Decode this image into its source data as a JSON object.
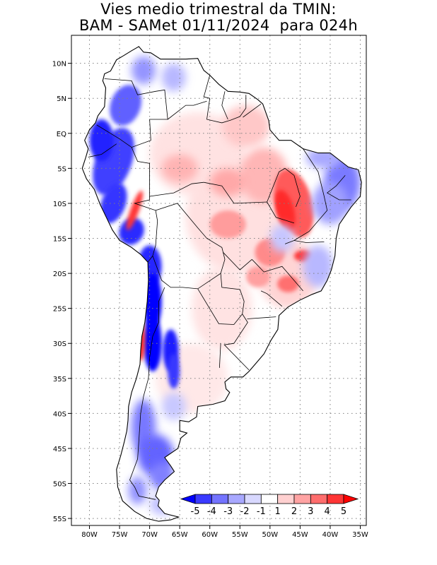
{
  "title": {
    "line1": "Vies medio trimestral da TMIN:",
    "line2": "BAM - SAMet 01/11/2024  para 024h"
  },
  "map": {
    "lon_range": [
      -83,
      -34
    ],
    "lat_range": [
      -56,
      14
    ],
    "x_ticks": [
      {
        "lon": -80,
        "label": "80W"
      },
      {
        "lon": -75,
        "label": "75W"
      },
      {
        "lon": -70,
        "label": "70W"
      },
      {
        "lon": -65,
        "label": "65W"
      },
      {
        "lon": -60,
        "label": "60W"
      },
      {
        "lon": -55,
        "label": "55W"
      },
      {
        "lon": -50,
        "label": "50W"
      },
      {
        "lon": -45,
        "label": "45W"
      },
      {
        "lon": -40,
        "label": "40W"
      },
      {
        "lon": -35,
        "label": "35W"
      }
    ],
    "y_ticks": [
      {
        "lat": 10,
        "label": "10N"
      },
      {
        "lat": 5,
        "label": "5N"
      },
      {
        "lat": 0,
        "label": "EQ"
      },
      {
        "lat": -5,
        "label": "5S"
      },
      {
        "lat": -10,
        "label": "10S"
      },
      {
        "lat": -15,
        "label": "15S"
      },
      {
        "lat": -20,
        "label": "20S"
      },
      {
        "lat": -25,
        "label": "25S"
      },
      {
        "lat": -30,
        "label": "30S"
      },
      {
        "lat": -35,
        "label": "35S"
      },
      {
        "lat": -40,
        "label": "40S"
      },
      {
        "lat": -45,
        "label": "45S"
      },
      {
        "lat": -50,
        "label": "50S"
      },
      {
        "lat": -55,
        "label": "55S"
      }
    ],
    "grid": "dotted"
  },
  "colorbar": {
    "labels": [
      "-5",
      "-4",
      "-3",
      "-2",
      "-1",
      "1",
      "2",
      "3",
      "4",
      "5"
    ],
    "colors": [
      "#0000ff",
      "#3a3aff",
      "#7373ff",
      "#a8a8ff",
      "#d8d8ff",
      "#ffffff",
      "#ffd0d0",
      "#ffa3a3",
      "#ff6d6d",
      "#ff3535",
      "#ff0000"
    ]
  }
}
